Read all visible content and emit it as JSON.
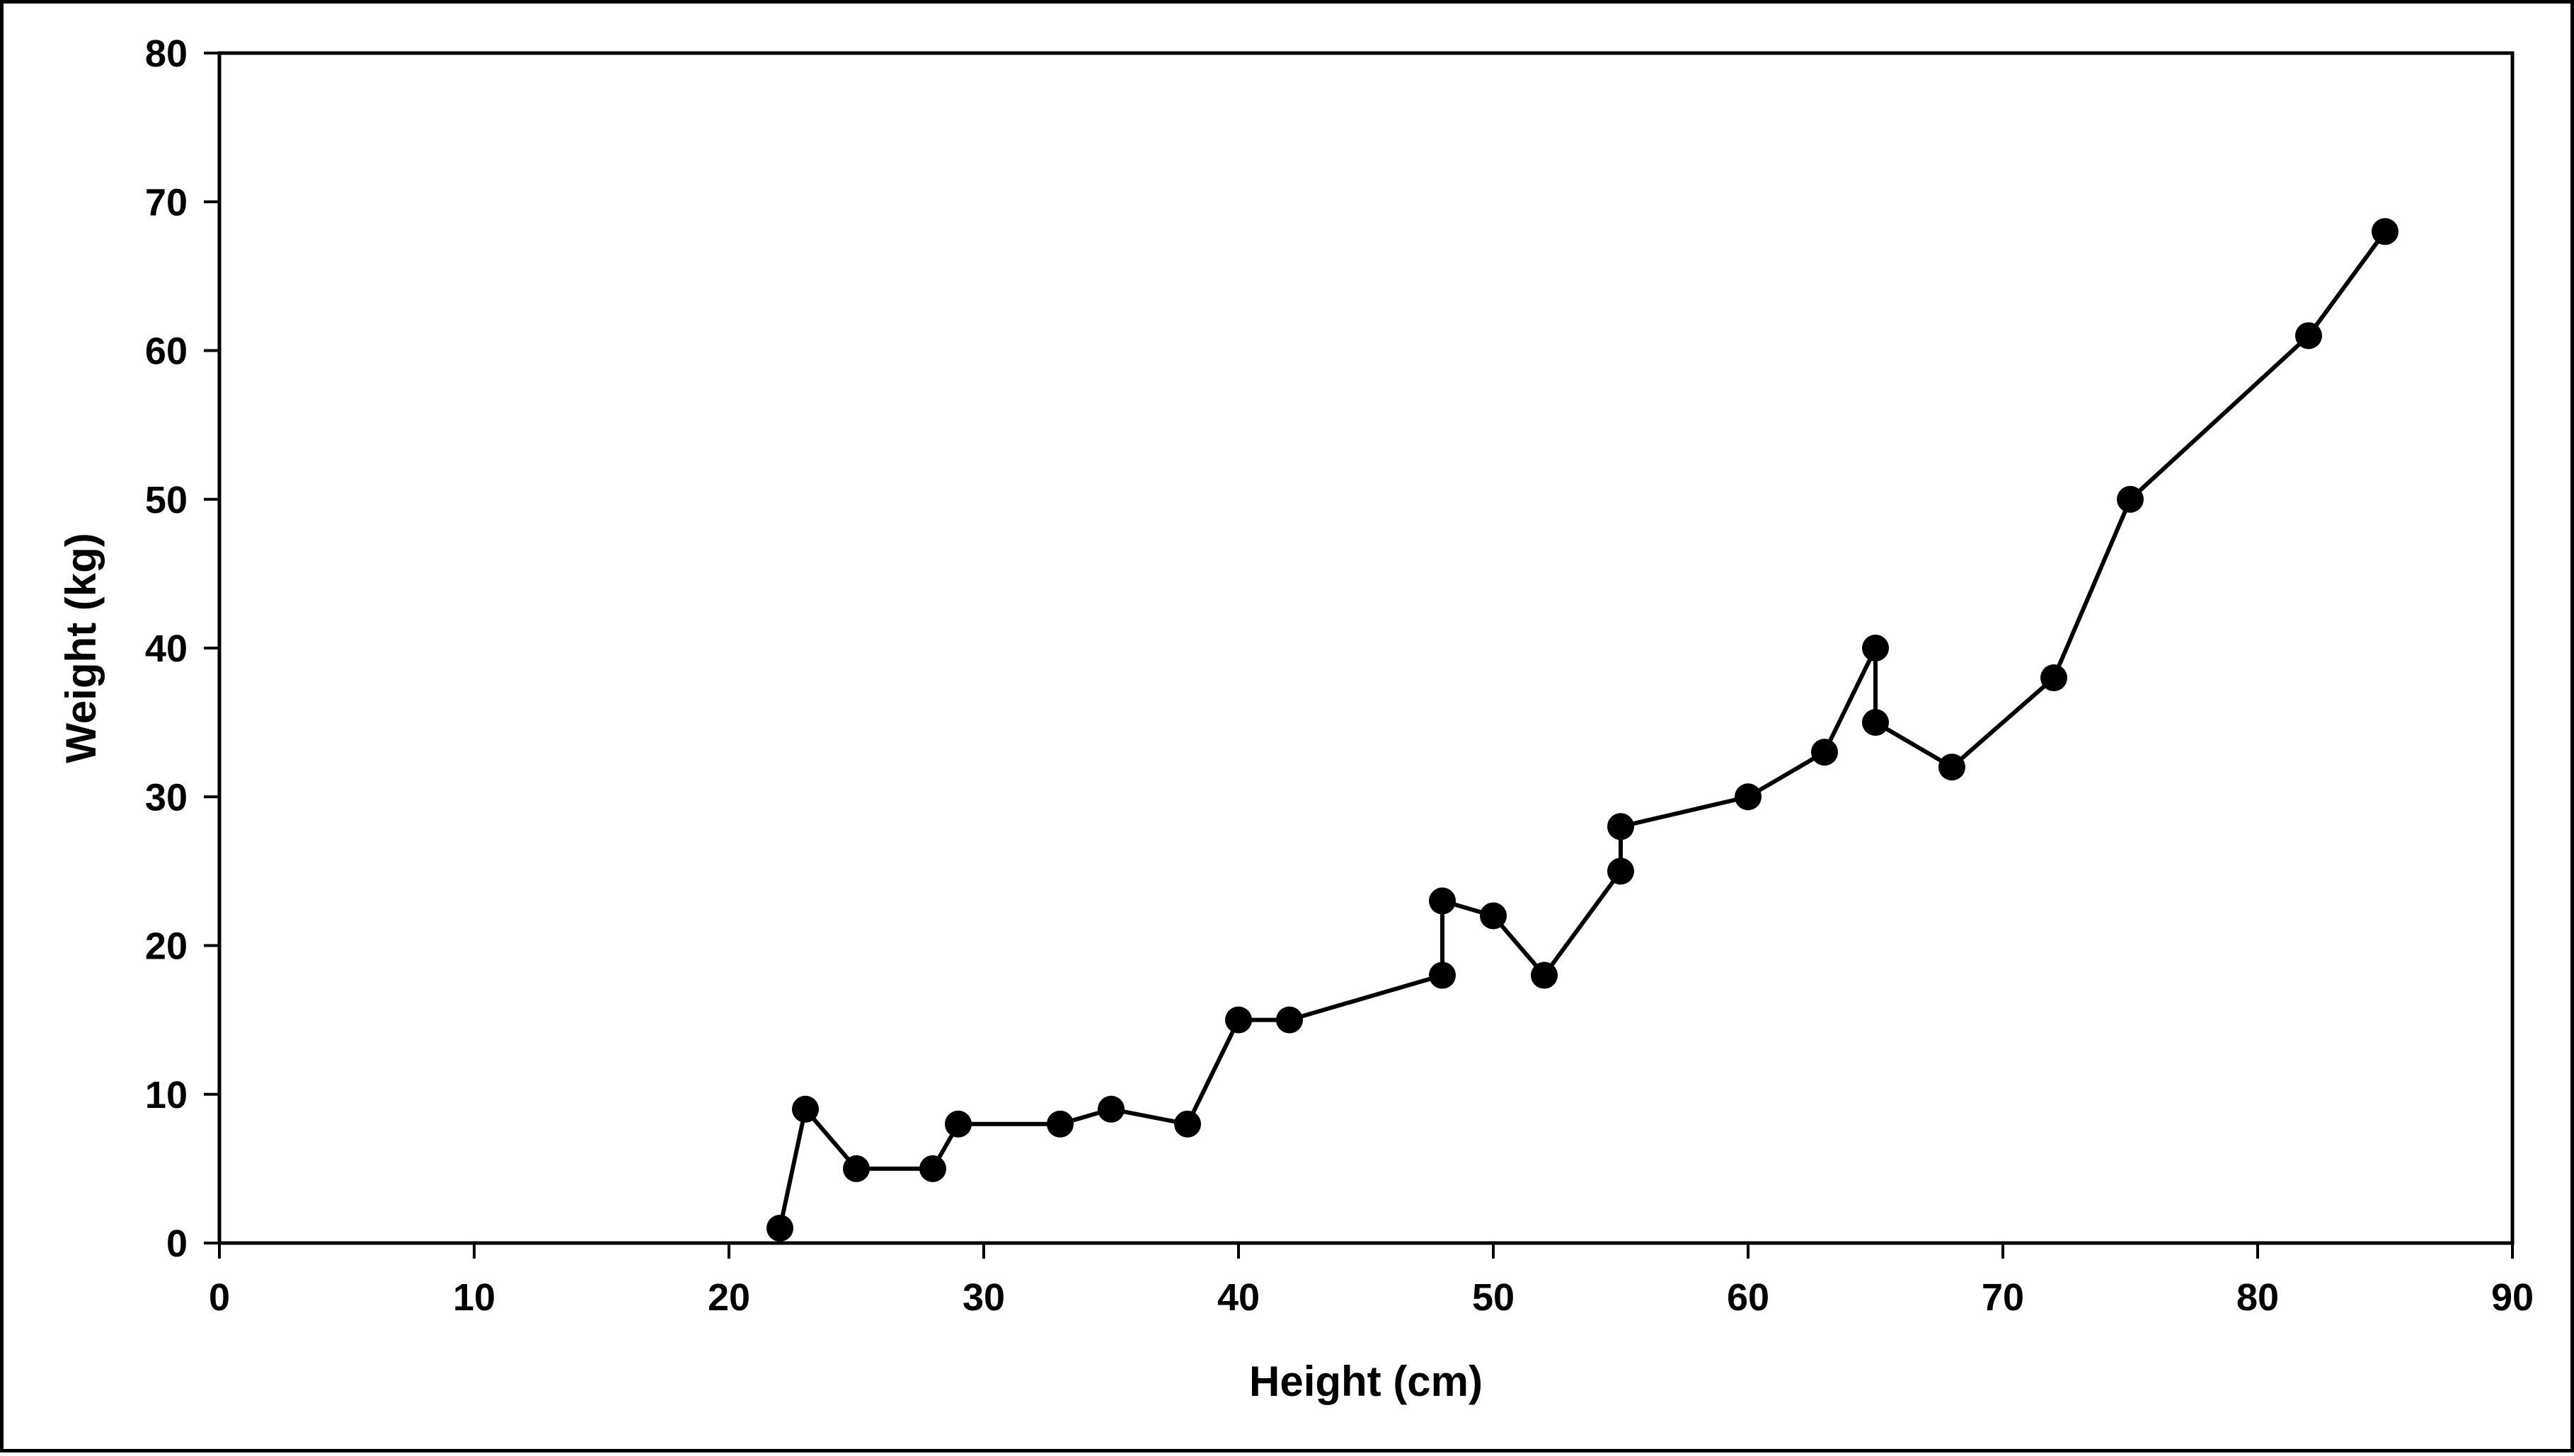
{
  "chart_data": {
    "type": "line",
    "title": "",
    "xlabel": "Height (cm)",
    "ylabel": "Weight (kg)",
    "xlim": [
      0,
      90
    ],
    "ylim": [
      0,
      80
    ],
    "x_ticks": [
      0,
      10,
      20,
      30,
      40,
      50,
      60,
      70,
      80,
      90
    ],
    "y_ticks": [
      0,
      10,
      20,
      30,
      40,
      50,
      60,
      70,
      80
    ],
    "grid": false,
    "legend": "none",
    "markers": "filled-circle",
    "line_color": "#000000",
    "marker_color": "#000000",
    "series": [
      {
        "points": [
          {
            "x": 22,
            "y": 1
          },
          {
            "x": 23,
            "y": 9
          },
          {
            "x": 25,
            "y": 5
          },
          {
            "x": 28,
            "y": 5
          },
          {
            "x": 29,
            "y": 8
          },
          {
            "x": 33,
            "y": 8
          },
          {
            "x": 35,
            "y": 9
          },
          {
            "x": 38,
            "y": 8
          },
          {
            "x": 40,
            "y": 15
          },
          {
            "x": 42,
            "y": 15
          },
          {
            "x": 48,
            "y": 18
          },
          {
            "x": 48,
            "y": 23
          },
          {
            "x": 50,
            "y": 22
          },
          {
            "x": 52,
            "y": 18
          },
          {
            "x": 55,
            "y": 25
          },
          {
            "x": 55,
            "y": 28
          },
          {
            "x": 60,
            "y": 30
          },
          {
            "x": 63,
            "y": 33
          },
          {
            "x": 65,
            "y": 40
          },
          {
            "x": 65,
            "y": 35
          },
          {
            "x": 68,
            "y": 32
          },
          {
            "x": 72,
            "y": 38
          },
          {
            "x": 75,
            "y": 50
          },
          {
            "x": 82,
            "y": 61
          },
          {
            "x": 85,
            "y": 68
          }
        ]
      }
    ]
  }
}
